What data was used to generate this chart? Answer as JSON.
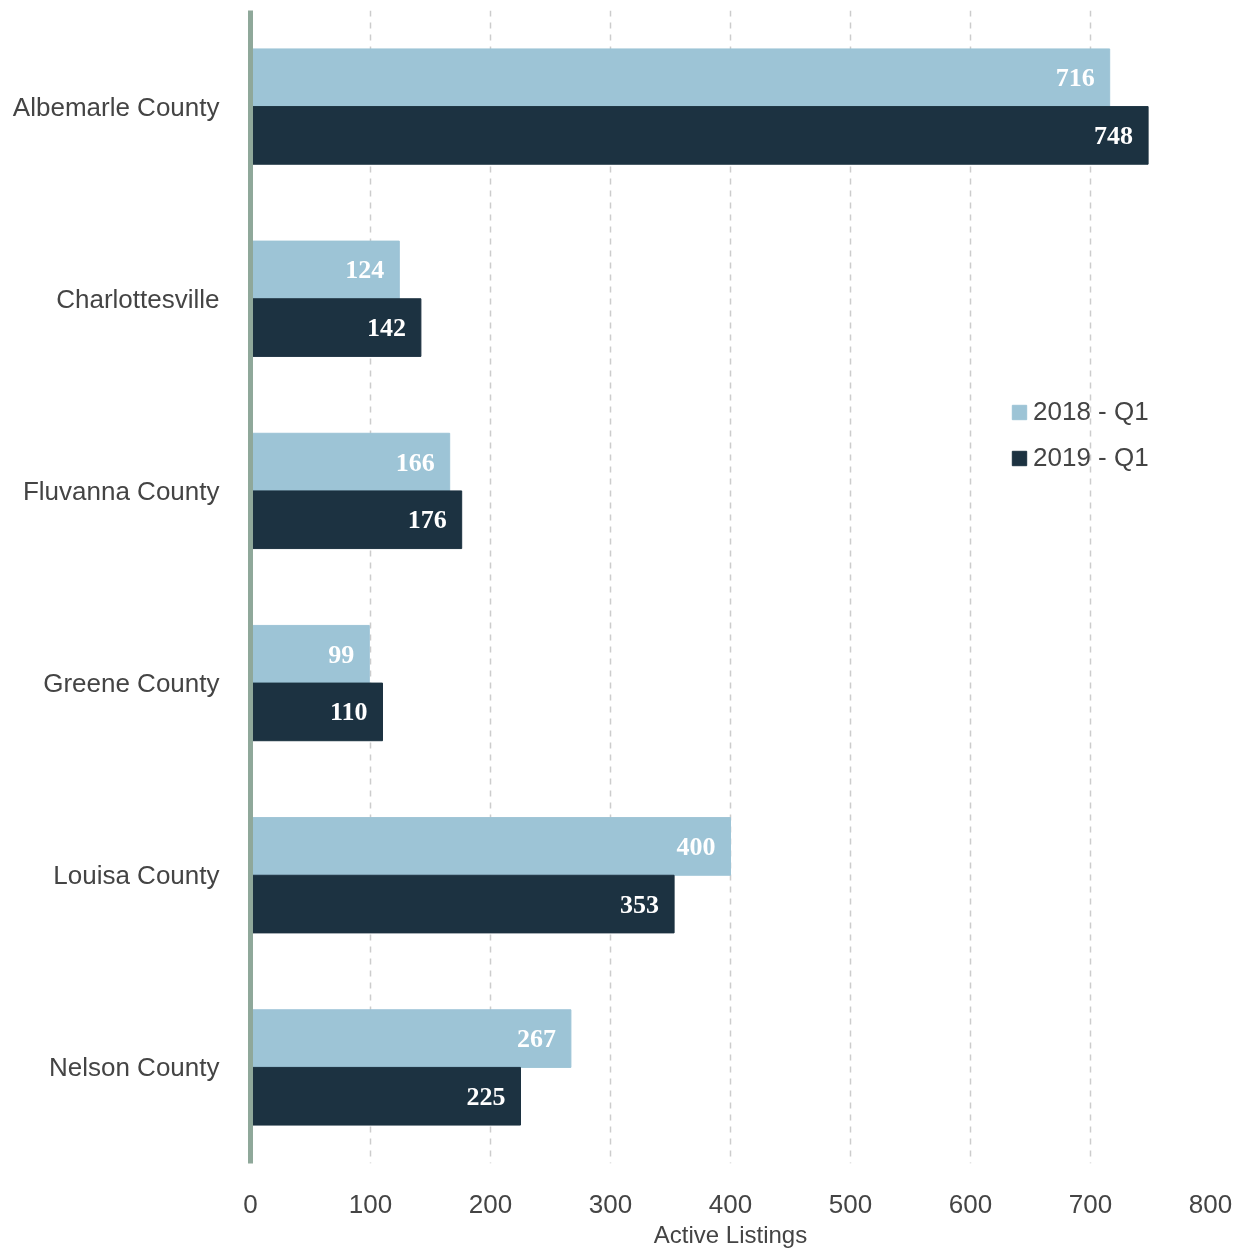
{
  "chart_data": {
    "type": "bar",
    "orientation": "horizontal",
    "xlabel": "Active Listings",
    "categories": [
      "Albemarle County",
      "Charlottesville",
      "Fluvanna County",
      "Greene County",
      "Louisa County",
      "Nelson County"
    ],
    "series": [
      {
        "name": "2018 - Q1",
        "color": "#9dc4d6",
        "values": [
          716,
          124,
          166,
          99,
          400,
          267
        ]
      },
      {
        "name": "2019 - Q1",
        "color": "#1c3241",
        "values": [
          748,
          142,
          176,
          110,
          353,
          225
        ]
      }
    ],
    "xlim": [
      0,
      800
    ],
    "xticks": [
      0,
      100,
      200,
      300,
      400,
      500,
      600,
      700,
      800
    ],
    "grid": "x",
    "legend": "right",
    "data_labels": true
  }
}
